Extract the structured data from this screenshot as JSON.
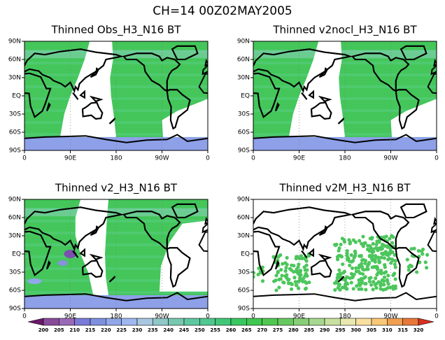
{
  "title": "CH=14    00Z02MAY2005",
  "panels": [
    {
      "title": "Thinned Obs_H3_N16 BT"
    },
    {
      "title": "Thinned v2nocl_H3_N16 BT"
    },
    {
      "title": "Thinned v2_H3_N16 BT"
    },
    {
      "title": "Thinned v2M_H3_N16 BT"
    }
  ],
  "lon_labels": [
    "0",
    "90E",
    "180",
    "90W",
    "0"
  ],
  "lat_labels": [
    "90N",
    "60N",
    "30N",
    "EQ",
    "30S",
    "60S",
    "90S"
  ],
  "colorbar": {
    "levels": [
      200,
      205,
      210,
      215,
      220,
      225,
      230,
      235,
      240,
      245,
      250,
      255,
      260,
      265,
      270,
      275,
      280,
      285,
      290,
      295,
      300,
      305,
      310,
      315,
      320
    ],
    "colors": [
      "#6a186a",
      "#8a4a9a",
      "#9a6ab8",
      "#7a7ad8",
      "#8090e0",
      "#90a8e8",
      "#a0b8f0",
      "#a8c8e0",
      "#90c8c8",
      "#78c8b0",
      "#60c8a0",
      "#50c890",
      "#40c878",
      "#38c860",
      "#40c850",
      "#50c850",
      "#68c860",
      "#88d078",
      "#a8d890",
      "#c8e0a0",
      "#e8e8b0",
      "#f8e0a0",
      "#f8c878",
      "#f0a050",
      "#e87838",
      "#d83020"
    ]
  }
}
